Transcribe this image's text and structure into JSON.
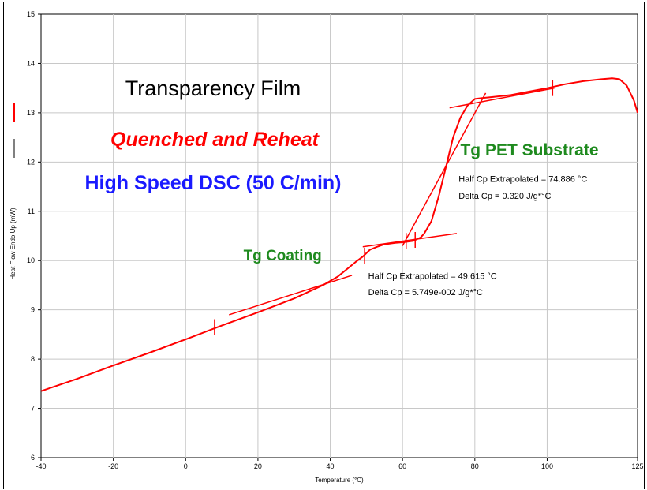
{
  "chart_data": {
    "type": "line",
    "title": "Transparency Film",
    "subtitle_lines": [
      {
        "text": "Quenched and Reheat",
        "color": "#ff0000",
        "italic": true
      },
      {
        "text": "High Speed DSC (50 C/min)",
        "color": "#1a1aff",
        "italic": false
      }
    ],
    "xlabel": "Temperature (°C)",
    "ylabel": "Heat Flow Endo Up (mW)",
    "xlim": [
      -40,
      125
    ],
    "ylim": [
      6,
      15
    ],
    "xticks": [
      -40,
      -20,
      0,
      20,
      40,
      60,
      80,
      100,
      125
    ],
    "yticks": [
      6,
      7,
      8,
      9,
      10,
      11,
      12,
      13,
      14,
      15
    ],
    "grid": true,
    "series_color": "#ff0000",
    "series": [
      {
        "x": [
          -40,
          -30,
          -20,
          -10,
          0,
          10,
          20,
          30,
          38,
          42,
          45,
          47,
          49,
          51,
          53,
          55,
          58,
          60,
          63,
          65,
          66,
          68,
          70,
          72,
          74,
          76,
          78,
          80,
          82,
          85,
          90,
          95,
          100,
          105,
          110,
          115,
          118,
          120,
          122,
          124,
          125
        ],
        "y": [
          7.35,
          7.6,
          7.87,
          8.13,
          8.4,
          8.68,
          8.95,
          9.23,
          9.5,
          9.67,
          9.85,
          9.97,
          10.08,
          10.22,
          10.28,
          10.33,
          10.36,
          10.37,
          10.4,
          10.47,
          10.55,
          10.8,
          11.3,
          11.9,
          12.5,
          12.9,
          13.15,
          13.28,
          13.3,
          13.32,
          13.36,
          13.43,
          13.5,
          13.58,
          13.64,
          13.68,
          13.7,
          13.68,
          13.55,
          13.25,
          13.0
        ]
      }
    ],
    "tangent_lines": [
      {
        "x": [
          12,
          46
        ],
        "y": [
          8.9,
          9.7
        ]
      },
      {
        "x": [
          49,
          75
        ],
        "y": [
          10.28,
          10.55
        ]
      },
      {
        "x": [
          73,
          102
        ],
        "y": [
          13.1,
          13.5
        ]
      },
      {
        "x": [
          60,
          83
        ],
        "y": [
          10.3,
          13.4
        ]
      }
    ],
    "markers": [
      {
        "x": 8,
        "y": 8.65
      },
      {
        "x": 49.5,
        "y": 10.1
      },
      {
        "x": 61,
        "y": 10.4
      },
      {
        "x": 63.5,
        "y": 10.42
      },
      {
        "x": 101.5,
        "y": 13.5
      }
    ],
    "annotations": [
      {
        "text": "Tg PET Substrate",
        "x": 76,
        "y": 12.13,
        "color": "#1e8a1e",
        "size": 21,
        "bold": true
      },
      {
        "text": "Half Cp Extrapolated = 74.886 °C",
        "x": 75.5,
        "y": 11.6,
        "color": "#000000",
        "size": 11,
        "bold": false
      },
      {
        "text": "Delta Cp = 0.320 J/g*°C",
        "x": 75.5,
        "y": 11.25,
        "color": "#000000",
        "size": 11,
        "bold": false
      },
      {
        "text": "Tg Coating",
        "x": 16,
        "y": 10.0,
        "color": "#1e8a1e",
        "size": 19,
        "bold": true
      },
      {
        "text": "Half Cp Extrapolated = 49.615 °C",
        "x": 50.5,
        "y": 9.63,
        "color": "#000000",
        "size": 11,
        "bold": false
      },
      {
        "text": "Delta Cp = 5.749e-002 J/g*°C",
        "x": 50.5,
        "y": 9.3,
        "color": "#000000",
        "size": 11,
        "bold": false
      }
    ],
    "legend": {
      "position": "left",
      "entries": [
        {
          "style": "red-line"
        },
        {
          "style": "black-line"
        }
      ]
    }
  }
}
